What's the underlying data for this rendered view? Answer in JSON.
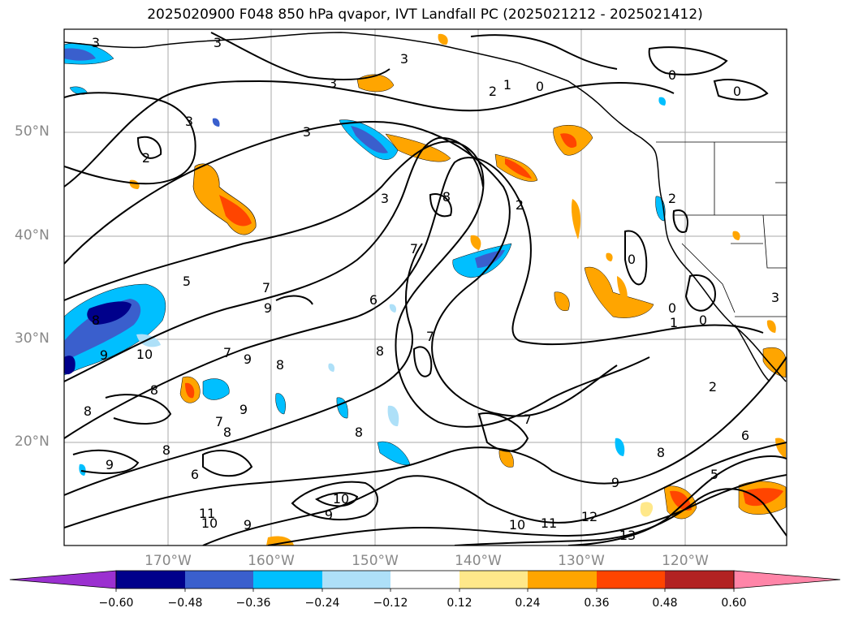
{
  "title": "2025020900 F048 850 hPa qvapor, IVT Landfall PC (2025021212 - 2025021412)",
  "map": {
    "lat_labels": [
      "50°N",
      "40°N",
      "30°N",
      "20°N"
    ],
    "lon_labels": [
      "170°W",
      "160°W",
      "150°W",
      "140°W",
      "130°W",
      "120°W"
    ],
    "contour_labels": [
      "3",
      "3",
      "3",
      "3",
      "3",
      "2",
      "1",
      "0",
      "0",
      "0",
      "2",
      "3",
      "2",
      "3",
      "8",
      "7",
      "5",
      "7",
      "9",
      "9",
      "10",
      "8",
      "7",
      "9",
      "8",
      "6",
      "7",
      "8",
      "8",
      "8",
      "8",
      "9",
      "7",
      "9",
      "8",
      "6",
      "8",
      "9",
      "10",
      "11",
      "9",
      "10",
      "10",
      "11",
      "12",
      "13",
      "7",
      "8",
      "9",
      "1",
      "0",
      "0",
      "2",
      "3",
      "6",
      "5",
      "2",
      "0"
    ]
  },
  "colorbar": {
    "ticks": [
      "−0.60",
      "−0.48",
      "−0.36",
      "−0.24",
      "−0.12",
      "0.12",
      "0.24",
      "0.36",
      "0.48",
      "0.60"
    ],
    "colors": [
      "#9b30d0",
      "#00008b",
      "#3a5fcd",
      "#00bfff",
      "#aee0f8",
      "#ffffff",
      "#ffe88a",
      "#ffa500",
      "#ff4500",
      "#b22222",
      "#ff85a8"
    ]
  }
}
